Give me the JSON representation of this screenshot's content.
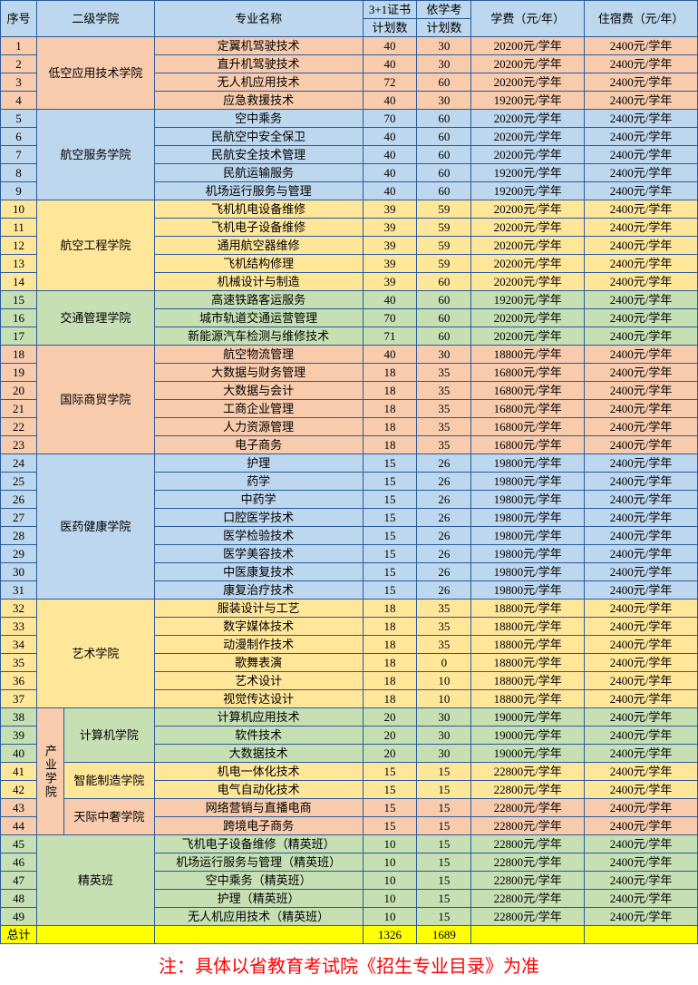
{
  "colors": {
    "blue": "#bdd7ee",
    "orange": "#f8cbad",
    "yellow": "#ffe699",
    "green": "#c6e0b4",
    "total": "#ffff00",
    "header": "#bdd7ee"
  },
  "headers": {
    "idx": "序号",
    "college": "二级学院",
    "major": "专业名称",
    "plan3": "3+1证书\n计划数",
    "plan3_l1": "3+1证书",
    "plan3_l2": "计划数",
    "planY_l1": "依学考",
    "planY_l2": "计划数",
    "tuition": "学费（元/年）",
    "dorm": "住宿费（元/年）"
  },
  "groups": [
    {
      "name": "低空应用技术学院",
      "color": "orange",
      "rows": [
        {
          "idx": 1,
          "major": "定翼机驾驶技术",
          "p3": 40,
          "py": 30,
          "tuition": "20200元/学年",
          "dorm": "2400元/学年"
        },
        {
          "idx": 2,
          "major": "直升机驾驶技术",
          "p3": 40,
          "py": 30,
          "tuition": "20200元/学年",
          "dorm": "2400元/学年"
        },
        {
          "idx": 3,
          "major": "无人机应用技术",
          "p3": 72,
          "py": 60,
          "tuition": "20200元/学年",
          "dorm": "2400元/学年"
        },
        {
          "idx": 4,
          "major": "应急救援技术",
          "p3": 40,
          "py": 30,
          "tuition": "19200元/学年",
          "dorm": "2400元/学年"
        }
      ]
    },
    {
      "name": "航空服务学院",
      "color": "blue",
      "rows": [
        {
          "idx": 5,
          "major": "空中乘务",
          "p3": 70,
          "py": 60,
          "tuition": "20200元/学年",
          "dorm": "2400元/学年"
        },
        {
          "idx": 6,
          "major": "民航空中安全保卫",
          "p3": 40,
          "py": 60,
          "tuition": "20200元/学年",
          "dorm": "2400元/学年"
        },
        {
          "idx": 7,
          "major": "民航安全技术管理",
          "p3": 40,
          "py": 60,
          "tuition": "20200元/学年",
          "dorm": "2400元/学年"
        },
        {
          "idx": 8,
          "major": "民航运输服务",
          "p3": 40,
          "py": 60,
          "tuition": "19200元/学年",
          "dorm": "2400元/学年"
        },
        {
          "idx": 9,
          "major": "机场运行服务与管理",
          "p3": 40,
          "py": 60,
          "tuition": "19200元/学年",
          "dorm": "2400元/学年"
        }
      ]
    },
    {
      "name": "航空工程学院",
      "color": "yellow",
      "rows": [
        {
          "idx": 10,
          "major": "飞机机电设备维修",
          "p3": 39,
          "py": 59,
          "tuition": "20200元/学年",
          "dorm": "2400元/学年"
        },
        {
          "idx": 11,
          "major": "飞机电子设备维修",
          "p3": 39,
          "py": 59,
          "tuition": "20200元/学年",
          "dorm": "2400元/学年"
        },
        {
          "idx": 12,
          "major": "通用航空器维修",
          "p3": 39,
          "py": 59,
          "tuition": "20200元/学年",
          "dorm": "2400元/学年"
        },
        {
          "idx": 13,
          "major": "飞机结构修理",
          "p3": 39,
          "py": 59,
          "tuition": "20200元/学年",
          "dorm": "2400元/学年"
        },
        {
          "idx": 14,
          "major": "机械设计与制造",
          "p3": 39,
          "py": 60,
          "tuition": "20200元/学年",
          "dorm": "2400元/学年"
        }
      ]
    },
    {
      "name": "交通管理学院",
      "color": "green",
      "rows": [
        {
          "idx": 15,
          "major": "高速铁路客运服务",
          "p3": 40,
          "py": 60,
          "tuition": "19200元/学年",
          "dorm": "2400元/学年"
        },
        {
          "idx": 16,
          "major": "城市轨道交通运营管理",
          "p3": 70,
          "py": 60,
          "tuition": "20200元/学年",
          "dorm": "2400元/学年"
        },
        {
          "idx": 17,
          "major": "新能源汽车检测与维修技术",
          "p3": 71,
          "py": 60,
          "tuition": "20200元/学年",
          "dorm": "2400元/学年"
        }
      ]
    },
    {
      "name": "国际商贸学院",
      "color": "orange",
      "rows": [
        {
          "idx": 18,
          "major": "航空物流管理",
          "p3": 40,
          "py": 30,
          "tuition": "18800元/学年",
          "dorm": "2400元/学年"
        },
        {
          "idx": 19,
          "major": "大数据与财务管理",
          "p3": 18,
          "py": 35,
          "tuition": "16800元/学年",
          "dorm": "2400元/学年"
        },
        {
          "idx": 20,
          "major": "大数据与会计",
          "p3": 18,
          "py": 35,
          "tuition": "16800元/学年",
          "dorm": "2400元/学年"
        },
        {
          "idx": 21,
          "major": "工商企业管理",
          "p3": 18,
          "py": 35,
          "tuition": "16800元/学年",
          "dorm": "2400元/学年"
        },
        {
          "idx": 22,
          "major": "人力资源管理",
          "p3": 18,
          "py": 35,
          "tuition": "16800元/学年",
          "dorm": "2400元/学年"
        },
        {
          "idx": 23,
          "major": "电子商务",
          "p3": 18,
          "py": 35,
          "tuition": "16800元/学年",
          "dorm": "2400元/学年"
        }
      ]
    },
    {
      "name": "医药健康学院",
      "color": "blue",
      "rows": [
        {
          "idx": 24,
          "major": "护理",
          "p3": 15,
          "py": 26,
          "tuition": "19800元/学年",
          "dorm": "2400元/学年"
        },
        {
          "idx": 25,
          "major": "药学",
          "p3": 15,
          "py": 26,
          "tuition": "19800元/学年",
          "dorm": "2400元/学年"
        },
        {
          "idx": 26,
          "major": "中药学",
          "p3": 15,
          "py": 26,
          "tuition": "19800元/学年",
          "dorm": "2400元/学年"
        },
        {
          "idx": 27,
          "major": "口腔医学技术",
          "p3": 15,
          "py": 26,
          "tuition": "19800元/学年",
          "dorm": "2400元/学年"
        },
        {
          "idx": 28,
          "major": "医学检验技术",
          "p3": 15,
          "py": 26,
          "tuition": "19800元/学年",
          "dorm": "2400元/学年"
        },
        {
          "idx": 29,
          "major": "医学美容技术",
          "p3": 15,
          "py": 26,
          "tuition": "19800元/学年",
          "dorm": "2400元/学年"
        },
        {
          "idx": 30,
          "major": "中医康复技术",
          "p3": 15,
          "py": 26,
          "tuition": "19800元/学年",
          "dorm": "2400元/学年"
        },
        {
          "idx": 31,
          "major": "康复治疗技术",
          "p3": 15,
          "py": 26,
          "tuition": "19800元/学年",
          "dorm": "2400元/学年"
        }
      ]
    },
    {
      "name": "艺术学院",
      "color": "yellow",
      "rows": [
        {
          "idx": 32,
          "major": "服装设计与工艺",
          "p3": 18,
          "py": 35,
          "tuition": "18800元/学年",
          "dorm": "2400元/学年"
        },
        {
          "idx": 33,
          "major": "数字媒体技术",
          "p3": 18,
          "py": 35,
          "tuition": "18800元/学年",
          "dorm": "2400元/学年"
        },
        {
          "idx": 34,
          "major": "动漫制作技术",
          "p3": 18,
          "py": 35,
          "tuition": "18800元/学年",
          "dorm": "2400元/学年"
        },
        {
          "idx": 35,
          "major": "歌舞表演",
          "p3": 18,
          "py": 0,
          "tuition": "18800元/学年",
          "dorm": "2400元/学年"
        },
        {
          "idx": 36,
          "major": "艺术设计",
          "p3": 18,
          "py": 10,
          "tuition": "18800元/学年",
          "dorm": "2400元/学年"
        },
        {
          "idx": 37,
          "major": "视觉传达设计",
          "p3": 18,
          "py": 10,
          "tuition": "18800元/学年",
          "dorm": "2400元/学年"
        }
      ]
    }
  ],
  "industry": {
    "parent": "产业学院",
    "parentColor": "orange",
    "subs": [
      {
        "name": "计算机学院",
        "color": "green",
        "rows": [
          {
            "idx": 38,
            "major": "计算机应用技术",
            "p3": 20,
            "py": 30,
            "tuition": "19000元/学年",
            "dorm": "2400元/学年"
          },
          {
            "idx": 39,
            "major": "软件技术",
            "p3": 20,
            "py": 30,
            "tuition": "19000元/学年",
            "dorm": "2400元/学年"
          },
          {
            "idx": 40,
            "major": "大数据技术",
            "p3": 20,
            "py": 30,
            "tuition": "19000元/学年",
            "dorm": "2400元/学年"
          }
        ]
      },
      {
        "name": "智能制造学院",
        "color": "yellow",
        "rows": [
          {
            "idx": 41,
            "major": "机电一体化技术",
            "p3": 15,
            "py": 15,
            "tuition": "22800元/学年",
            "dorm": "2400元/学年"
          },
          {
            "idx": 42,
            "major": "电气自动化技术",
            "p3": 15,
            "py": 15,
            "tuition": "22800元/学年",
            "dorm": "2400元/学年"
          }
        ]
      },
      {
        "name": "天际中奢学院",
        "color": "orange",
        "rows": [
          {
            "idx": 43,
            "major": "网络营销与直播电商",
            "p3": 15,
            "py": 15,
            "tuition": "22800元/学年",
            "dorm": "2400元/学年"
          },
          {
            "idx": 44,
            "major": "跨境电子商务",
            "p3": 15,
            "py": 15,
            "tuition": "22800元/学年",
            "dorm": "2400元/学年"
          }
        ]
      }
    ]
  },
  "elite": {
    "name": "精英班",
    "color": "green",
    "rows": [
      {
        "idx": 45,
        "major": "飞机电子设备维修（精英班）",
        "p3": 10,
        "py": 15,
        "tuition": "22800元/学年",
        "dorm": "2400元/学年"
      },
      {
        "idx": 46,
        "major": "机场运行服务与管理（精英班）",
        "p3": 10,
        "py": 15,
        "tuition": "22800元/学年",
        "dorm": "2400元/学年"
      },
      {
        "idx": 47,
        "major": "空中乘务（精英班）",
        "p3": 10,
        "py": 15,
        "tuition": "22800元/学年",
        "dorm": "2400元/学年"
      },
      {
        "idx": 48,
        "major": "护理（精英班）",
        "p3": 10,
        "py": 15,
        "tuition": "22800元/学年",
        "dorm": "2400元/学年"
      },
      {
        "idx": 49,
        "major": "无人机应用技术（精英班）",
        "p3": 10,
        "py": 15,
        "tuition": "22800元/学年",
        "dorm": "2400元/学年"
      }
    ]
  },
  "total": {
    "label": "总计",
    "p3": 1326,
    "py": 1689
  },
  "footnote": "注：具体以省教育考试院《招生专业目录》为准"
}
